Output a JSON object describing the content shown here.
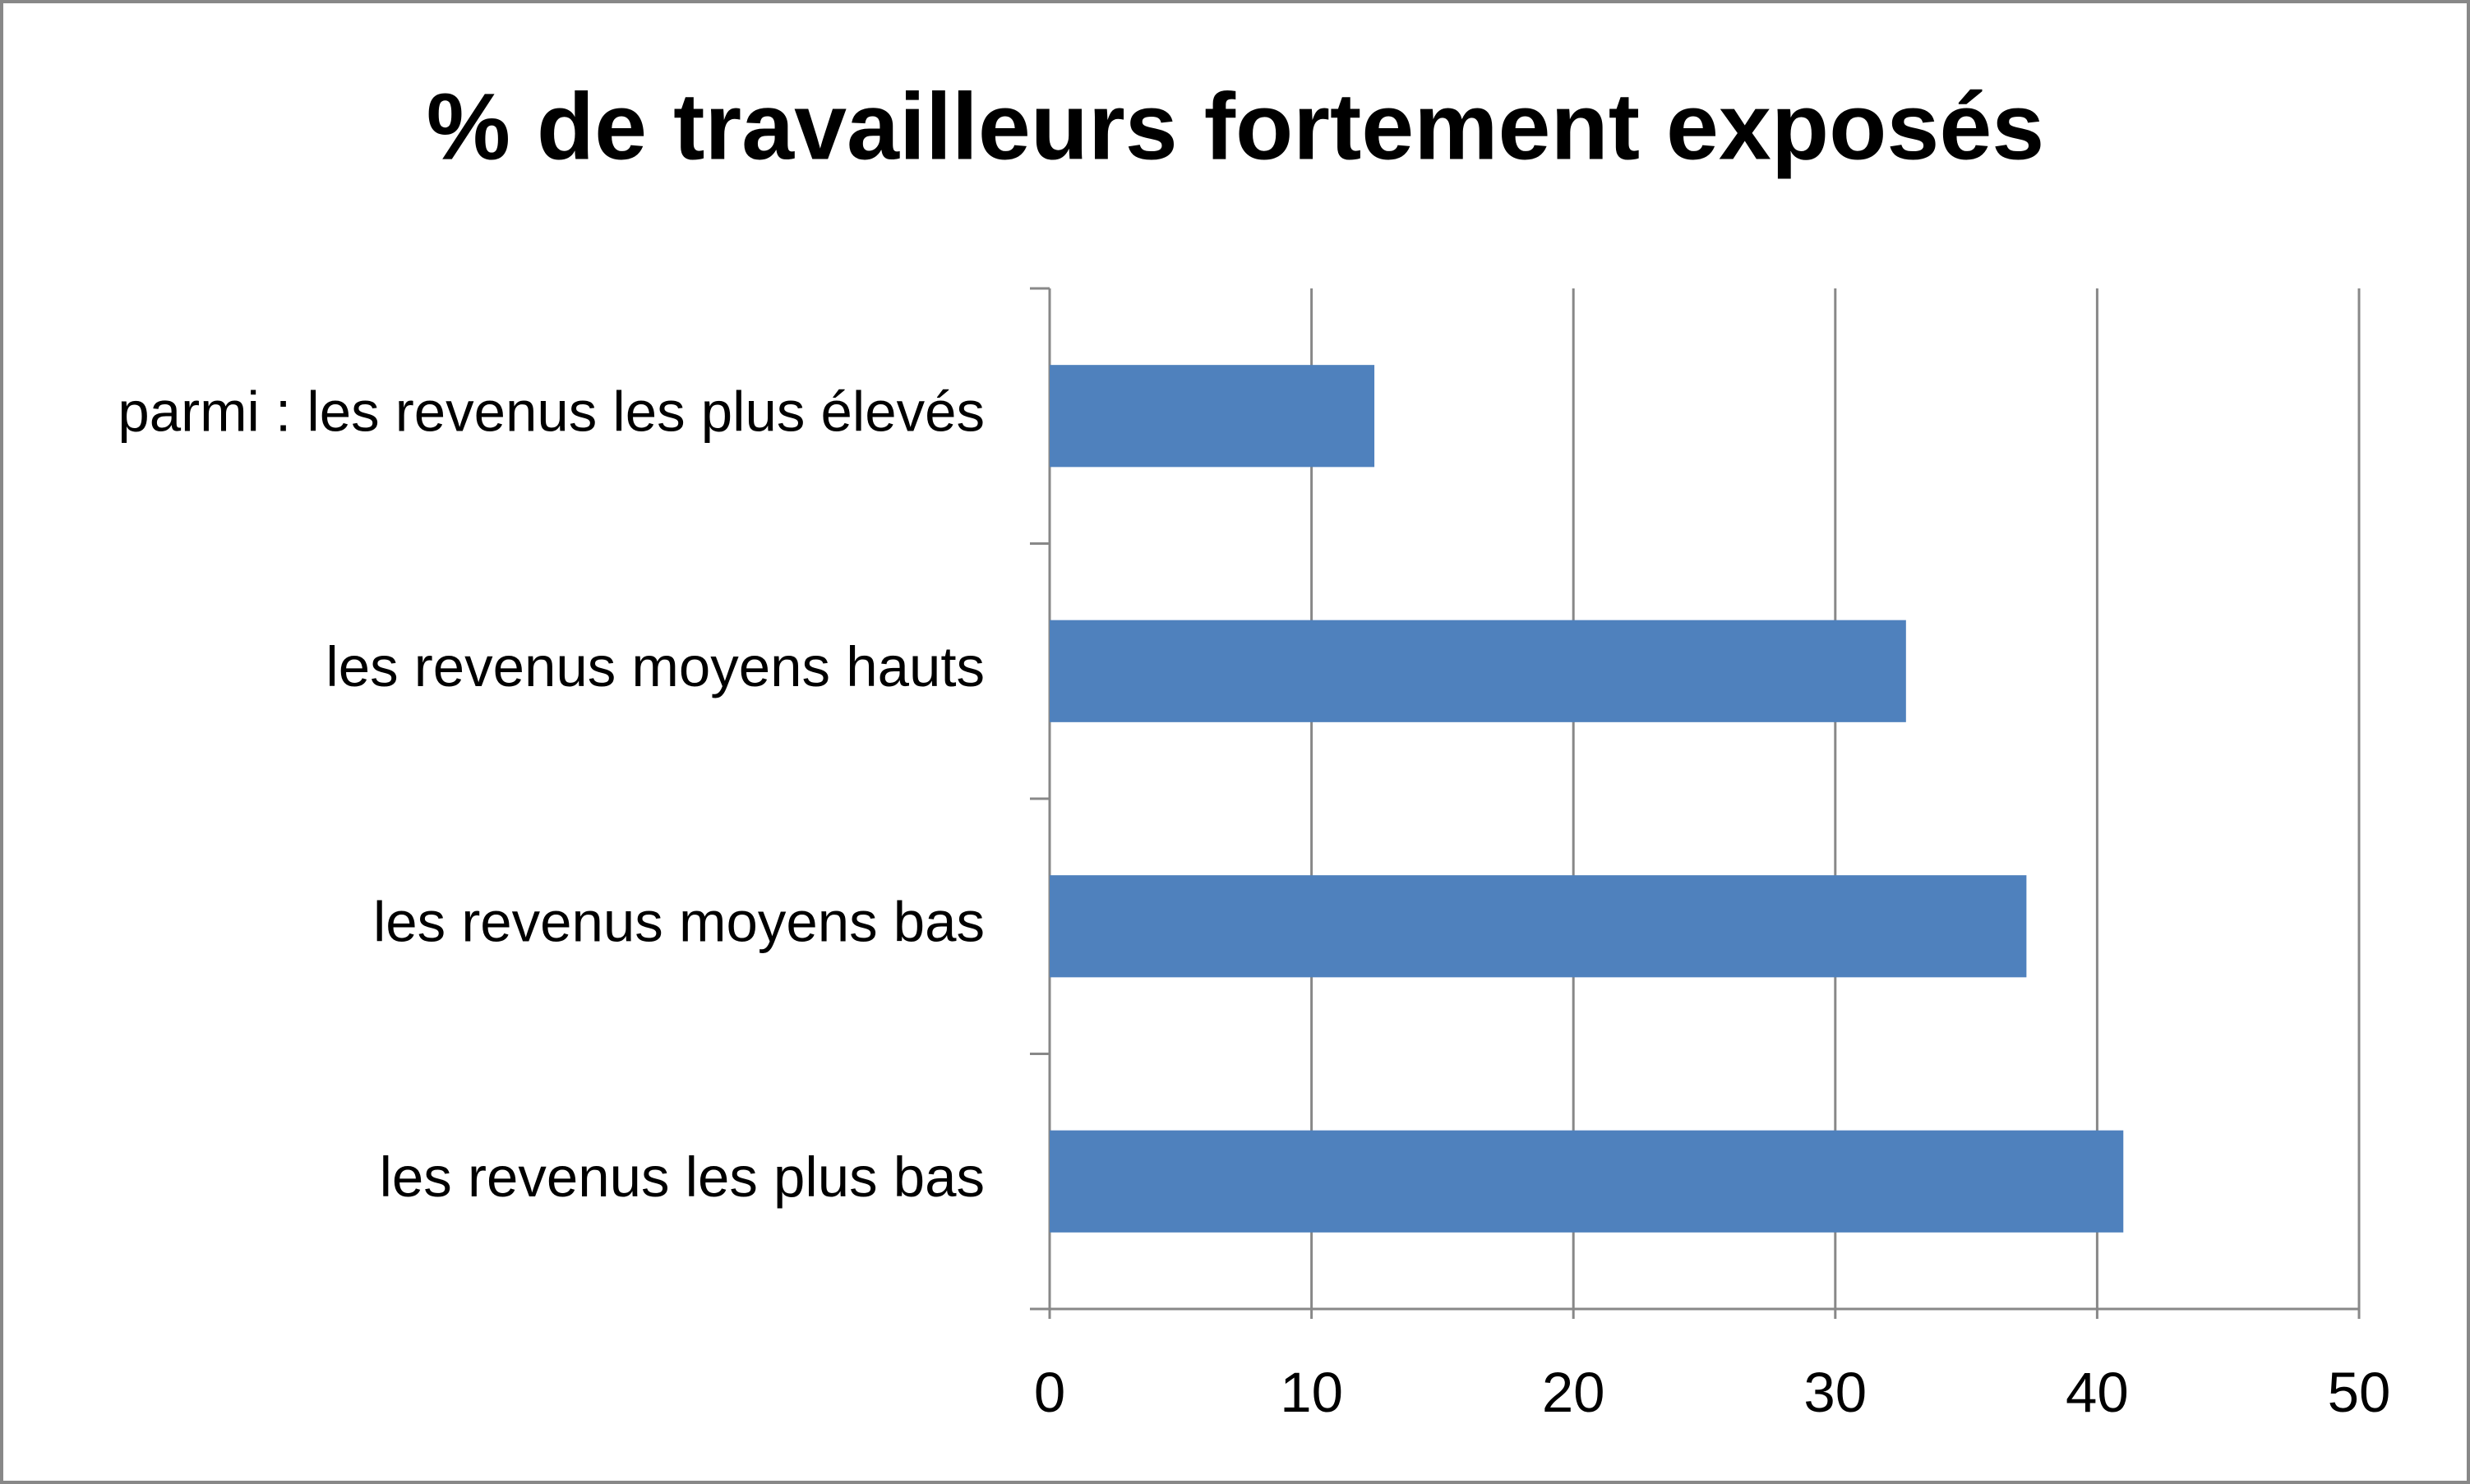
{
  "chart_data": {
    "type": "bar",
    "orientation": "horizontal",
    "title": "% de travailleurs fortement exposés",
    "categories": [
      "parmi : les revenus les plus élevés",
      "les revenus moyens hauts",
      "les revenus moyens bas",
      "les revenus les plus bas"
    ],
    "values": [
      12.4,
      32.7,
      37.3,
      41.0
    ],
    "color": "#4f81bd",
    "xlim": [
      0,
      50
    ],
    "xticks": [
      0,
      10,
      20,
      30,
      40,
      50
    ],
    "grid": true
  }
}
